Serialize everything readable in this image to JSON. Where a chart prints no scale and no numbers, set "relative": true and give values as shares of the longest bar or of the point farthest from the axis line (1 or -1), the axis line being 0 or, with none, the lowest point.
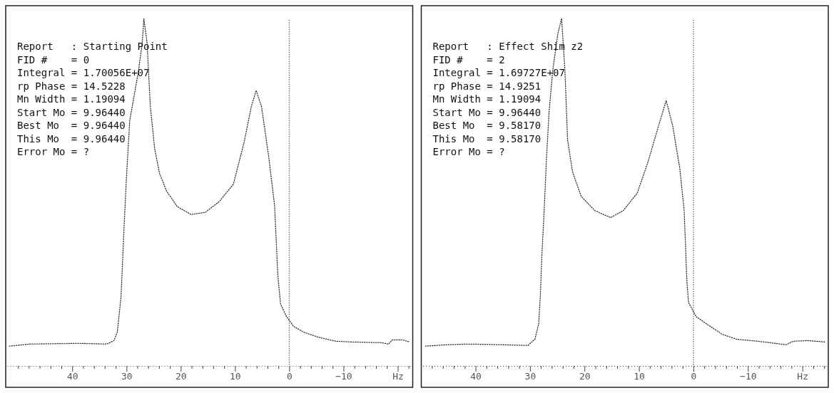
{
  "chart_data": [
    {
      "type": "line",
      "relative": true,
      "line_style": "dotted",
      "annotations": [
        "Report   : Starting Point",
        "FID #    = 0",
        "Integral = 1.70056E+07",
        "rp Phase = 14.5228",
        "Mn Width = 1.19094",
        "Start Mo = 9.96440",
        "Best Mo  = 9.96440",
        "This Mo  = 9.96440",
        "Error Mo = ?"
      ],
      "xlim": [
        52,
        -22.5
      ],
      "xticks": [
        {
          "value": 50,
          "label": null
        },
        {
          "value": 48,
          "label": null
        },
        {
          "value": 46,
          "label": null
        },
        {
          "value": 44,
          "label": null
        },
        {
          "value": 42,
          "label": null
        },
        40,
        {
          "value": 38,
          "label": null
        },
        {
          "value": 36,
          "label": null
        },
        {
          "value": 34,
          "label": null
        },
        {
          "value": 32,
          "label": null
        },
        30,
        {
          "value": 28,
          "label": null
        },
        {
          "value": 26,
          "label": null
        },
        {
          "value": 24,
          "label": null
        },
        {
          "value": 22,
          "label": null
        },
        20,
        {
          "value": 18,
          "label": null
        },
        {
          "value": 16,
          "label": null
        },
        {
          "value": 14,
          "label": null
        },
        {
          "value": 12,
          "label": null
        },
        10,
        {
          "value": 8,
          "label": null
        },
        {
          "value": 6,
          "label": null
        },
        {
          "value": 4,
          "label": null
        },
        {
          "value": 2,
          "label": null
        },
        0,
        {
          "value": -2,
          "label": null
        },
        {
          "value": -4,
          "label": null
        },
        {
          "value": -6,
          "label": null
        },
        {
          "value": -8,
          "label": null
        },
        {
          "value": -10,
          "label": "−10"
        },
        {
          "value": -12,
          "label": null
        },
        {
          "value": -14,
          "label": null
        },
        {
          "value": -16,
          "label": null
        },
        {
          "value": -18,
          "label": null
        },
        {
          "value": -20,
          "label": "Hz"
        },
        {
          "value": -22,
          "label": null
        }
      ],
      "ref_lines": [
        {
          "axis": "x",
          "value": 0,
          "line_style": "dotted",
          "color": "#555555"
        }
      ],
      "series": [
        {
          "color": "#333333",
          "x": [
            51.6,
            47.9,
            38.8,
            33.6,
            32.3,
            31.7,
            31.0,
            30.5,
            30.0,
            29.4,
            27.8,
            27.1,
            26.8,
            26.2,
            25.6,
            24.8,
            23.9,
            22.6,
            20.6,
            18.1,
            15.5,
            12.9,
            10.3,
            8.3,
            7.0,
            6.1,
            5.1,
            3.8,
            2.7,
            2.1,
            1.6,
            0.5,
            -0.8,
            -2.7,
            -5.3,
            -8.6,
            -11.8,
            -17.0,
            -18.3,
            -19.0,
            -20.9,
            -22.2
          ],
          "values": [
            0.057,
            0.063,
            0.065,
            0.063,
            0.073,
            0.097,
            0.199,
            0.381,
            0.544,
            0.706,
            0.848,
            0.929,
            1.0,
            0.929,
            0.746,
            0.625,
            0.554,
            0.503,
            0.458,
            0.436,
            0.442,
            0.473,
            0.523,
            0.645,
            0.746,
            0.793,
            0.746,
            0.604,
            0.462,
            0.26,
            0.178,
            0.142,
            0.114,
            0.097,
            0.083,
            0.071,
            0.069,
            0.067,
            0.063,
            0.075,
            0.075,
            0.069
          ]
        }
      ]
    },
    {
      "type": "line",
      "relative": true,
      "line_style": "dotted",
      "annotations": [
        "Report   : Effect Shim z2",
        "FID #    = 2",
        "Integral = 1.69727E+07",
        "rp Phase = 14.9251",
        "Mn Width = 1.19094",
        "Start Mo = 9.96440",
        "Best Mo  = 9.58170",
        "This Mo  = 9.58170",
        "Error Mo = ?"
      ],
      "xlim": [
        49.7,
        -24.5
      ],
      "xticks": [
        {
          "value": 48,
          "label": null
        },
        {
          "value": 46,
          "label": null
        },
        {
          "value": 44,
          "label": null
        },
        {
          "value": 42,
          "label": null
        },
        40,
        {
          "value": 38,
          "label": null
        },
        {
          "value": 36,
          "label": null
        },
        {
          "value": 34,
          "label": null
        },
        {
          "value": 32,
          "label": null
        },
        30,
        {
          "value": 28,
          "label": null
        },
        {
          "value": 26,
          "label": null
        },
        {
          "value": 24,
          "label": null
        },
        {
          "value": 22,
          "label": null
        },
        20,
        {
          "value": 18,
          "label": null
        },
        {
          "value": 16,
          "label": null
        },
        {
          "value": 14,
          "label": null
        },
        {
          "value": 12,
          "label": null
        },
        10,
        {
          "value": 8,
          "label": null
        },
        {
          "value": 6,
          "label": null
        },
        {
          "value": 4,
          "label": null
        },
        {
          "value": 2,
          "label": null
        },
        0,
        {
          "value": -2,
          "label": null
        },
        {
          "value": -4,
          "label": null
        },
        {
          "value": -6,
          "label": null
        },
        {
          "value": -8,
          "label": null
        },
        {
          "value": -10,
          "label": "−10"
        },
        {
          "value": -12,
          "label": null
        },
        {
          "value": -14,
          "label": null
        },
        {
          "value": -16,
          "label": null
        },
        {
          "value": -18,
          "label": null
        },
        {
          "value": -20,
          "label": "Hz"
        },
        {
          "value": -22,
          "label": null
        },
        {
          "value": -24,
          "label": null
        }
      ],
      "ref_lines": [
        {
          "axis": "x",
          "value": 0,
          "line_style": "dotted",
          "color": "#555555"
        }
      ],
      "series": [
        {
          "color": "#333333",
          "x": [
            49.2,
            45.3,
            41.4,
            34.9,
            30.4,
            29.1,
            28.4,
            28.1,
            27.8,
            27.4,
            27.0,
            26.5,
            25.8,
            24.9,
            24.2,
            23.6,
            23.1,
            22.2,
            20.6,
            18.1,
            15.2,
            12.9,
            10.3,
            8.3,
            6.4,
            5.0,
            3.8,
            2.5,
            1.7,
            1.2,
            0.9,
            -0.5,
            -2.7,
            -5.3,
            -7.9,
            -13.1,
            -17.0,
            -18.3,
            -20.9,
            -24.2
          ],
          "values": [
            0.057,
            0.061,
            0.063,
            0.061,
            0.059,
            0.077,
            0.122,
            0.203,
            0.325,
            0.447,
            0.589,
            0.732,
            0.854,
            0.955,
            1.0,
            0.854,
            0.65,
            0.559,
            0.488,
            0.447,
            0.427,
            0.447,
            0.498,
            0.589,
            0.691,
            0.764,
            0.691,
            0.569,
            0.447,
            0.244,
            0.183,
            0.142,
            0.118,
            0.091,
            0.077,
            0.069,
            0.061,
            0.071,
            0.073,
            0.069
          ]
        }
      ]
    }
  ]
}
